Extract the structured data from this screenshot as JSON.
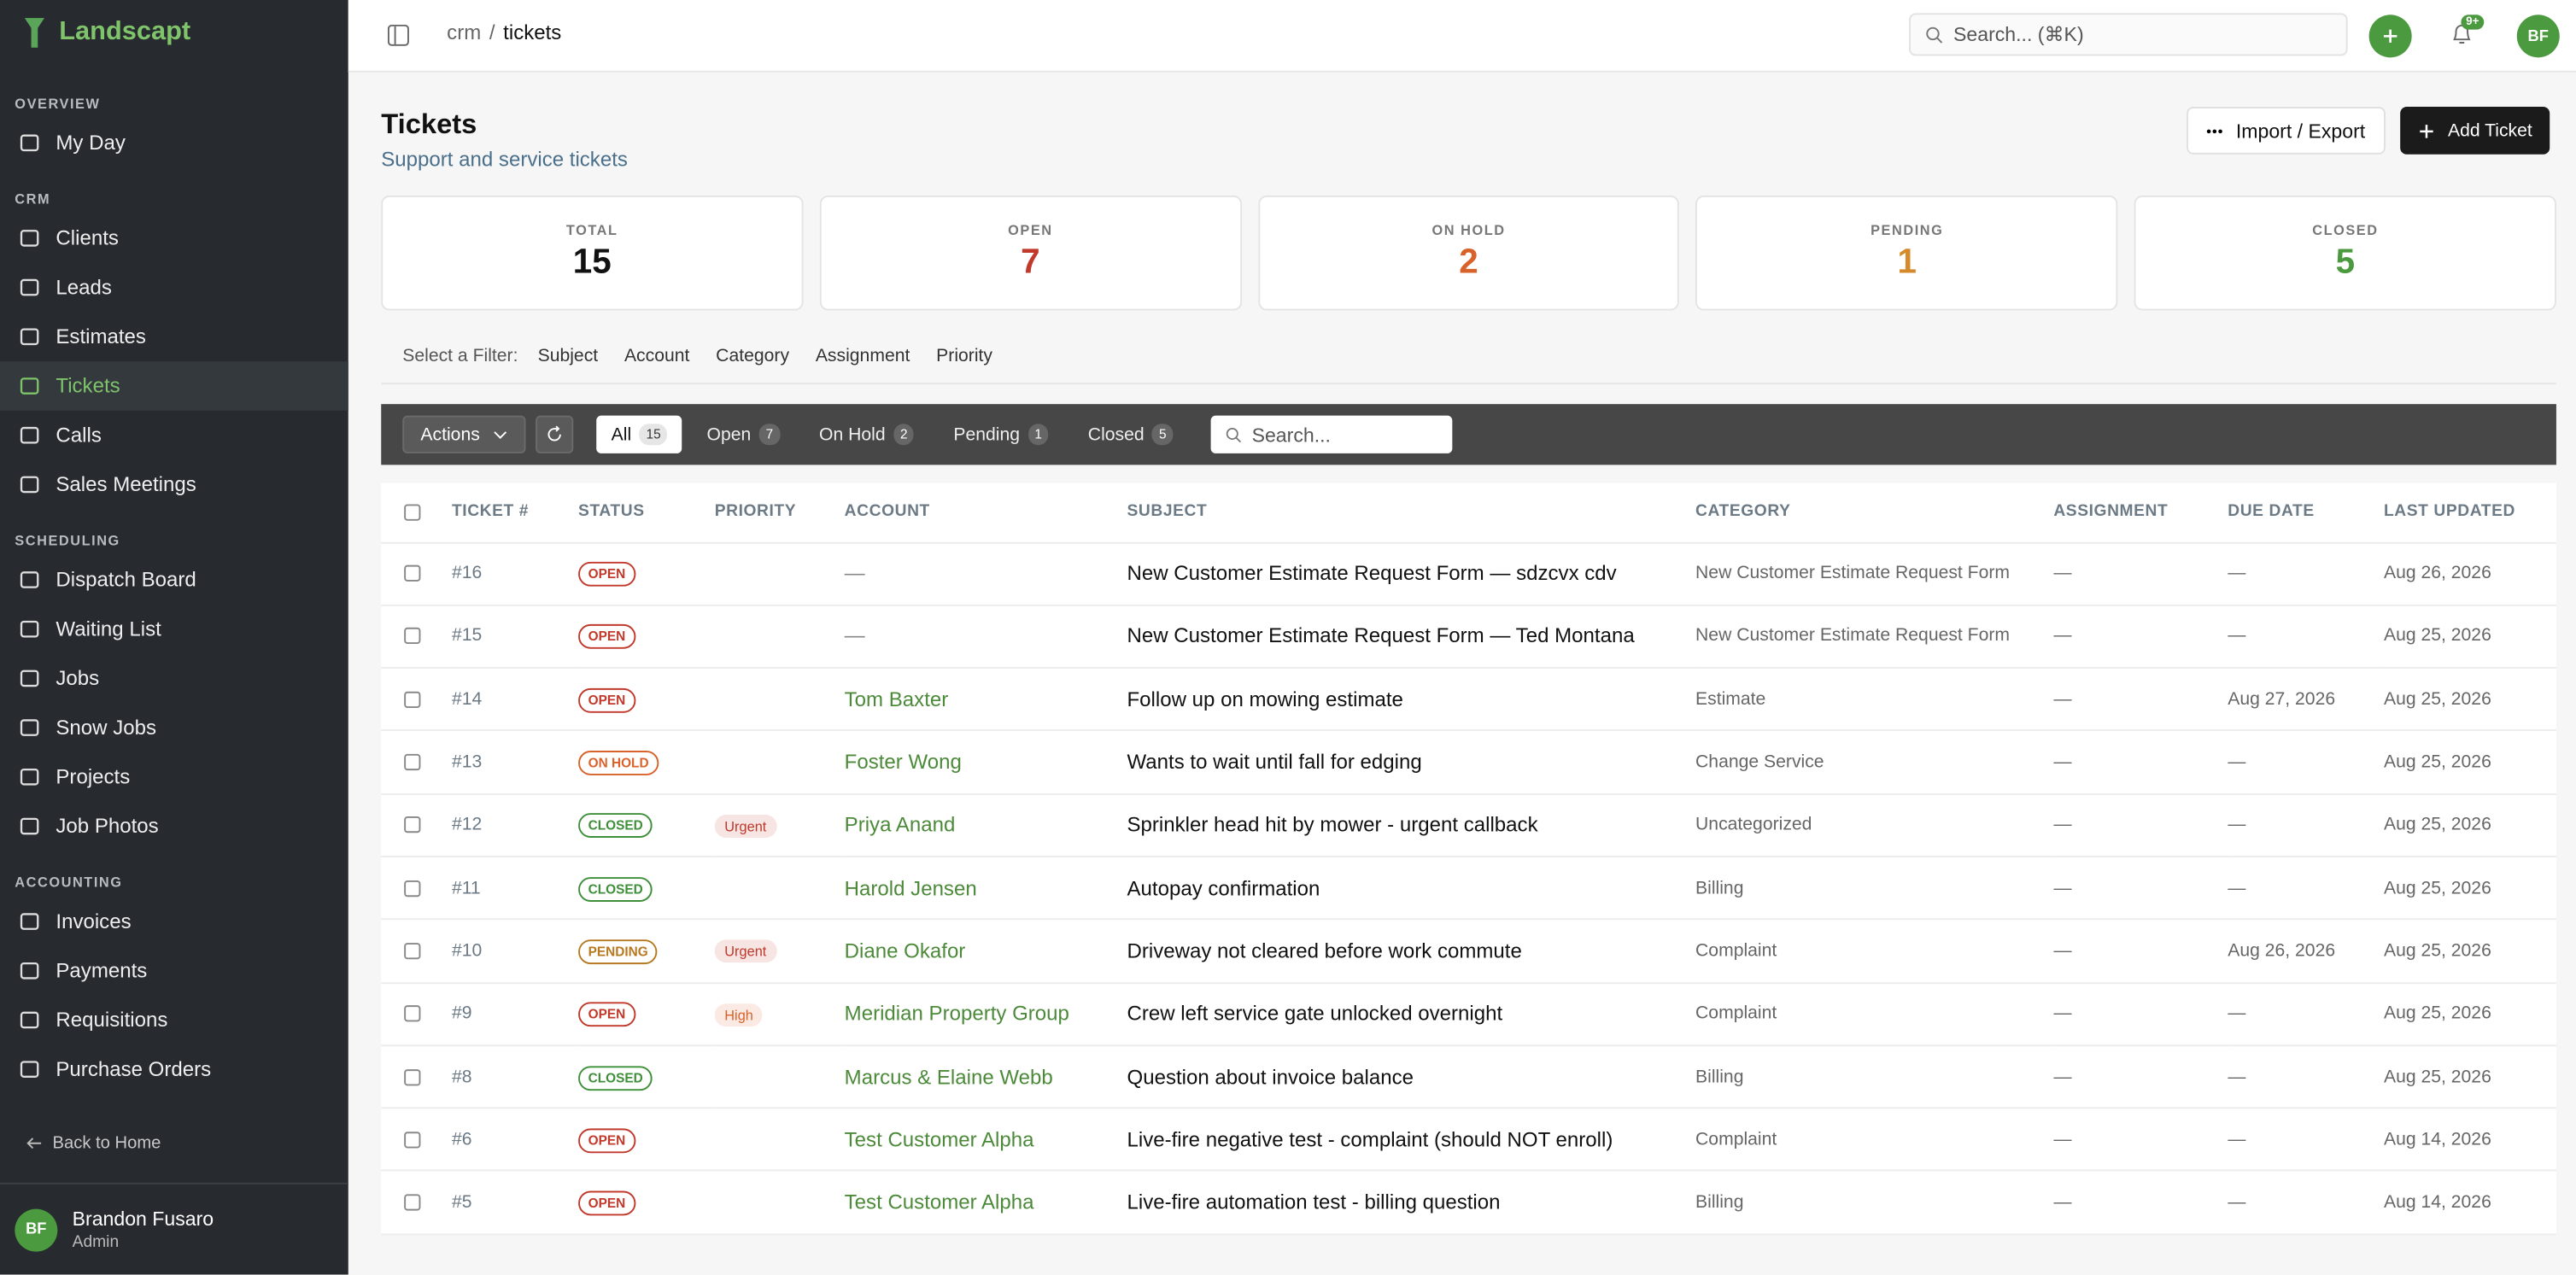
{
  "sidebar": {
    "brand": "Landscapt",
    "sections": [
      {
        "title": "OVERVIEW",
        "items": [
          {
            "label": "My Day"
          }
        ]
      },
      {
        "title": "CRM",
        "items": [
          {
            "label": "Clients"
          },
          {
            "label": "Leads"
          },
          {
            "label": "Estimates"
          },
          {
            "label": "Tickets",
            "active": true
          },
          {
            "label": "Calls"
          },
          {
            "label": "Sales Meetings"
          }
        ]
      },
      {
        "title": "SCHEDULING",
        "items": [
          {
            "label": "Dispatch Board"
          },
          {
            "label": "Waiting List"
          },
          {
            "label": "Jobs"
          },
          {
            "label": "Snow Jobs"
          },
          {
            "label": "Projects"
          },
          {
            "label": "Job Photos"
          }
        ]
      },
      {
        "title": "ACCOUNTING",
        "items": [
          {
            "label": "Invoices"
          },
          {
            "label": "Payments"
          },
          {
            "label": "Requisitions"
          },
          {
            "label": "Purchase Orders"
          }
        ]
      }
    ],
    "back": "Back to Home",
    "user": {
      "initials": "BF",
      "name": "Brandon Fusaro",
      "role": "Admin"
    }
  },
  "header": {
    "breadcrumb": [
      "crm",
      "tickets"
    ],
    "separator": "/",
    "search": "Search... (⌘K)",
    "badge": "9+",
    "avatar": "BF"
  },
  "page": {
    "title": "Tickets",
    "subtitle": "Support and service tickets",
    "buttons": [
      "Import / Export",
      "Add Ticket"
    ]
  },
  "stats": [
    {
      "label": "TOTAL",
      "value": 15,
      "color": "#111111"
    },
    {
      "label": "OPEN",
      "value": 7,
      "color": "#c0392b"
    },
    {
      "label": "ON HOLD",
      "value": 2,
      "color": "#d9622b"
    },
    {
      "label": "PENDING",
      "value": 1,
      "color": "#d4892a"
    },
    {
      "label": "CLOSED",
      "value": 5,
      "color": "#4c9a3f"
    }
  ],
  "filters": {
    "label": "Select a Filter:",
    "options": [
      "Subject",
      "Account",
      "Category",
      "Assignment",
      "Priority"
    ]
  },
  "toolbar": {
    "actions": "Actions",
    "tabs": [
      {
        "label": "All",
        "count": 15,
        "active": true
      },
      {
        "label": "Open",
        "count": 7
      },
      {
        "label": "On Hold",
        "count": 2
      },
      {
        "label": "Pending",
        "count": 1
      },
      {
        "label": "Closed",
        "count": 5
      }
    ],
    "search": "Search..."
  },
  "table": {
    "columns": [
      "TICKET #",
      "STATUS",
      "PRIORITY",
      "ACCOUNT",
      "SUBJECT",
      "CATEGORY",
      "ASSIGNMENT",
      "DUE DATE",
      "LAST UPDATED"
    ],
    "rows": [
      {
        "id": "#16",
        "status": "OPEN",
        "status_color": "#c0392b",
        "priority": null,
        "account": "—",
        "account_color": "#888888",
        "subject": "New Customer Estimate Request Form — sdzcvx cdv",
        "category": "New Customer Estimate Request Form",
        "assignment": "—",
        "due": "—",
        "updated": "Aug 26, 2026"
      },
      {
        "id": "#15",
        "status": "OPEN",
        "status_color": "#c0392b",
        "priority": null,
        "account": "—",
        "account_color": "#888888",
        "subject": "New Customer Estimate Request Form — Ted Montana",
        "category": "New Customer Estimate Request Form",
        "assignment": "—",
        "due": "—",
        "updated": "Aug 25, 2026"
      },
      {
        "id": "#14",
        "status": "OPEN",
        "status_color": "#c0392b",
        "priority": null,
        "account": "Tom Baxter",
        "account_color": "#4c8a3a",
        "subject": "Follow up on mowing estimate",
        "category": "Estimate",
        "assignment": "—",
        "due": "Aug 27, 2026",
        "updated": "Aug 25, 2026"
      },
      {
        "id": "#13",
        "status": "ON HOLD",
        "status_color": "#d9622b",
        "priority": null,
        "account": "Foster Wong",
        "account_color": "#4c8a3a",
        "subject": "Wants to wait until fall for edging",
        "category": "Change Service",
        "assignment": "—",
        "due": "—",
        "updated": "Aug 25, 2026"
      },
      {
        "id": "#12",
        "status": "CLOSED",
        "status_color": "#3f8f3a",
        "priority": "Urgent",
        "priority_color": "#c0392b",
        "account": "Priya Anand",
        "account_color": "#4c8a3a",
        "subject": "Sprinkler head hit by mower - urgent callback",
        "category": "Uncategorized",
        "assignment": "—",
        "due": "—",
        "updated": "Aug 25, 2026"
      },
      {
        "id": "#11",
        "status": "CLOSED",
        "status_color": "#3f8f3a",
        "priority": null,
        "account": "Harold Jensen",
        "account_color": "#4c8a3a",
        "subject": "Autopay confirmation",
        "category": "Billing",
        "assignment": "—",
        "due": "—",
        "updated": "Aug 25, 2026"
      },
      {
        "id": "#10",
        "status": "PENDING",
        "status_color": "#b7791f",
        "priority": "Urgent",
        "priority_color": "#c0392b",
        "account": "Diane Okafor",
        "account_color": "#4c8a3a",
        "subject": "Driveway not cleared before work commute",
        "category": "Complaint",
        "assignment": "—",
        "due": "Aug 26, 2026",
        "updated": "Aug 25, 2026"
      },
      {
        "id": "#9",
        "status": "OPEN",
        "status_color": "#c0392b",
        "priority": "High",
        "priority_color": "#d9622b",
        "account": "Meridian Property Group",
        "account_color": "#4c8a3a",
        "subject": "Crew left service gate unlocked overnight",
        "category": "Complaint",
        "assignment": "—",
        "due": "—",
        "updated": "Aug 25, 2026"
      },
      {
        "id": "#8",
        "status": "CLOSED",
        "status_color": "#3f8f3a",
        "priority": null,
        "account": "Marcus & Elaine Webb",
        "account_color": "#4c8a3a",
        "subject": "Question about invoice balance",
        "category": "Billing",
        "assignment": "—",
        "due": "—",
        "updated": "Aug 25, 2026"
      },
      {
        "id": "#6",
        "status": "OPEN",
        "status_color": "#c0392b",
        "priority": null,
        "account": "Test Customer Alpha",
        "account_color": "#4c8a3a",
        "subject": "Live-fire negative test - complaint (should NOT enroll)",
        "category": "Complaint",
        "assignment": "—",
        "due": "—",
        "updated": "Aug 14, 2026"
      },
      {
        "id": "#5",
        "status": "OPEN",
        "status_color": "#c0392b",
        "priority": null,
        "account": "Test Customer Alpha",
        "account_color": "#4c8a3a",
        "subject": "Live-fire automation test - billing question",
        "category": "Billing",
        "assignment": "—",
        "due": "—",
        "updated": "Aug 14, 2026"
      }
    ]
  }
}
